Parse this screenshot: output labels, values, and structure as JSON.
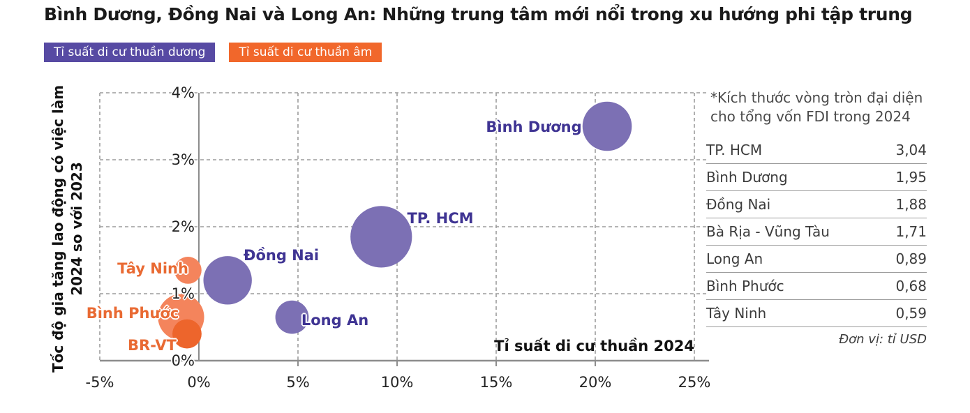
{
  "title": "Bình Dương, Đồng Nai và Long An: Những trung tâm mới nổi trong xu hướng phi tập trung",
  "legend": {
    "positive": {
      "label": "Tỉ suất di cư thuần dương",
      "color": "#574AA3"
    },
    "negative": {
      "label": "Tỉ suất di cư thuần âm",
      "color": "#F1672B"
    }
  },
  "chart_data": {
    "type": "scatter",
    "subtype": "bubble",
    "bubble_size_note": "*Kích thước vòng tròn đại diện cho tổng vốn FDI trong 2024",
    "x_axis": {
      "title": "Tỉ suất di cư thuần 2024",
      "range": [
        -5,
        25
      ],
      "ticks": [
        {
          "value": -5,
          "label": "-5%"
        },
        {
          "value": 0,
          "label": "0%"
        },
        {
          "value": 5,
          "label": "5%"
        },
        {
          "value": 10,
          "label": "10%"
        },
        {
          "value": 15,
          "label": "15%"
        },
        {
          "value": 20,
          "label": "20%"
        },
        {
          "value": 25,
          "label": "25%"
        }
      ]
    },
    "y_axis": {
      "title": "Tốc độ gia tăng lao động có việc làm 2024 so với 2023",
      "title_lines": [
        "Tốc độ gia tăng lao động có việc làm",
        "2024 so với 2023"
      ],
      "range": [
        0,
        4
      ],
      "ticks": [
        {
          "value": 0,
          "label": "0%"
        },
        {
          "value": 1,
          "label": "1%"
        },
        {
          "value": 2,
          "label": "2%"
        },
        {
          "value": 3,
          "label": "3%"
        },
        {
          "value": 4,
          "label": "4%"
        }
      ]
    },
    "grid": true,
    "points": [
      {
        "id": "binh-duong",
        "name": "Bình Dương",
        "x": 20.6,
        "y": 3.5,
        "fdi_billion_usd": 1.95,
        "group": "positive"
      },
      {
        "id": "tp-hcm",
        "name": "TP. HCM",
        "x": 9.2,
        "y": 1.85,
        "fdi_billion_usd": 3.04,
        "group": "positive"
      },
      {
        "id": "dong-nai",
        "name": "Đồng Nai",
        "x": 1.45,
        "y": 1.2,
        "fdi_billion_usd": 1.88,
        "group": "positive"
      },
      {
        "id": "long-an",
        "name": "Long An",
        "x": 4.7,
        "y": 0.65,
        "fdi_billion_usd": 0.89,
        "group": "positive"
      },
      {
        "id": "tay-ninh",
        "name": "Tây Ninh",
        "x": -0.55,
        "y": 1.35,
        "fdi_billion_usd": 0.59,
        "group": "negative"
      },
      {
        "id": "br-vt",
        "name": "BR-VT",
        "x": -0.9,
        "y": 0.65,
        "fdi_billion_usd": 1.71,
        "group": "negative"
      },
      {
        "id": "binh-phuoc",
        "name": "Bình Phước",
        "x": -0.6,
        "y": 0.4,
        "fdi_billion_usd": 0.68,
        "group": "negative",
        "shade": "dark"
      }
    ]
  },
  "fdi_table": {
    "rows": [
      {
        "name": "TP. HCM",
        "value": "3,04"
      },
      {
        "name": "Bình Dương",
        "value": "1,95"
      },
      {
        "name": "Đồng Nai",
        "value": "1,88"
      },
      {
        "name": "Bà Rịa - Vũng Tàu",
        "value": "1,71"
      },
      {
        "name": "Long An",
        "value": "0,89"
      },
      {
        "name": "Bình Phước",
        "value": "0,68"
      },
      {
        "name": "Tây Ninh",
        "value": "0,59"
      }
    ],
    "unit_note": "Đơn vị: tỉ USD"
  },
  "colors": {
    "badge_positive": "#574AA3",
    "badge_negative": "#F1672B",
    "bubble_positive": "#7C70B4",
    "bubble_negative": "#F4845C",
    "bubble_negative_dark": "#ED652C",
    "label_positive": "#3F3493",
    "label_negative": "#E96A33",
    "gridline": "#9C9C9C",
    "axis": "#8D8D8D",
    "text": "#1A1A1A"
  }
}
